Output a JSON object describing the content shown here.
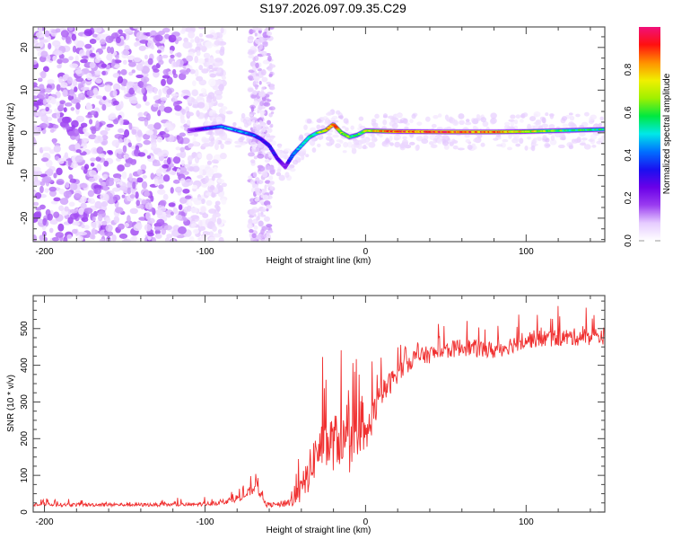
{
  "title": "S197.2026.097.09.35.C29",
  "chart_data": [
    {
      "type": "heatmap",
      "name": "spectrogram",
      "xlabel": "Height of straight line (km)",
      "ylabel": "Frequency (Hz)",
      "xlim": [
        -207,
        149
      ],
      "ylim": [
        -25.5,
        24.8
      ],
      "xticks": [
        -200,
        -100,
        0,
        100
      ],
      "xtick_labels": [
        "-200",
        "-100",
        "0",
        "100"
      ],
      "yticks": [
        -20,
        -10,
        0,
        10,
        20
      ],
      "ytick_labels": [
        "-20",
        "-10",
        "0",
        "10",
        "20"
      ],
      "colorbar": {
        "label": "Normalized spectral amplitude",
        "range": [
          0,
          1
        ],
        "ticks": [
          0.0,
          0.2,
          0.4,
          0.6,
          0.8
        ],
        "tick_labels": [
          "0.0",
          "0.2",
          "0.4",
          "0.6",
          "0.8"
        ],
        "colors": [
          "#ffffff",
          "#e6ccff",
          "#9a3cf0",
          "#6a00e8",
          "#1a10f0",
          "#0070ff",
          "#00e8e8",
          "#00e840",
          "#a0f000",
          "#f0f000",
          "#ff9000",
          "#ff1010",
          "#f0107a"
        ]
      },
      "ridge": {
        "description": "Signal ridge frequency (Hz) vs height (km)",
        "x": [
          -110,
          -100,
          -90,
          -80,
          -70,
          -65,
          -60,
          -55,
          -50,
          -45,
          -40,
          -35,
          -30,
          -25,
          -20,
          -15,
          -10,
          -5,
          0,
          20,
          50,
          80,
          100,
          120,
          149
        ],
        "y": [
          0.5,
          1,
          1.5,
          0.5,
          -0.5,
          -1.5,
          -3,
          -6,
          -8,
          -5,
          -3,
          -1,
          0,
          0.5,
          2,
          0,
          -1,
          -0.5,
          0.5,
          0.3,
          0.2,
          0.2,
          0.3,
          0.5,
          0.8
        ],
        "amplitude": [
          0.15,
          0.35,
          0.45,
          0.45,
          0.4,
          0.3,
          0.35,
          0.3,
          0.2,
          0.45,
          0.5,
          0.55,
          0.6,
          0.75,
          0.85,
          0.7,
          0.65,
          0.55,
          0.7,
          0.9,
          0.9,
          0.85,
          0.75,
          0.6,
          0.55
        ]
      },
      "noise_region_x": [
        -207,
        -100
      ],
      "noise_band_x": [
        -72,
        -58
      ]
    },
    {
      "type": "line",
      "name": "snr",
      "xlabel": "Height of straight line (km)",
      "ylabel": "SNR (10 * v/v)",
      "xlim": [
        -207,
        149
      ],
      "ylim": [
        0,
        590
      ],
      "xticks": [
        -200,
        -100,
        0,
        100
      ],
      "xtick_labels": [
        "-200",
        "-100",
        "0",
        "100"
      ],
      "yticks": [
        0,
        100,
        200,
        300,
        400,
        500
      ],
      "ytick_labels": [
        "0",
        "100",
        "200",
        "300",
        "400",
        "500"
      ],
      "color": "#f03030",
      "trend": {
        "x": [
          -207,
          -150,
          -110,
          -90,
          -75,
          -68,
          -62,
          -55,
          -45,
          -40,
          -35,
          -30,
          -25,
          -20,
          -15,
          -10,
          -5,
          0,
          5,
          10,
          20,
          30,
          40,
          60,
          80,
          100,
          120,
          149
        ],
        "y": [
          20,
          20,
          20,
          25,
          45,
          70,
          20,
          20,
          30,
          60,
          110,
          170,
          180,
          190,
          200,
          170,
          180,
          200,
          270,
          320,
          380,
          420,
          430,
          450,
          440,
          470,
          475,
          480
        ],
        "noise_amplitude": [
          8,
          8,
          8,
          10,
          20,
          25,
          10,
          10,
          30,
          60,
          90,
          110,
          120,
          130,
          120,
          110,
          110,
          90,
          70,
          60,
          45,
          40,
          40,
          40,
          40,
          40,
          40,
          40
        ]
      }
    }
  ]
}
